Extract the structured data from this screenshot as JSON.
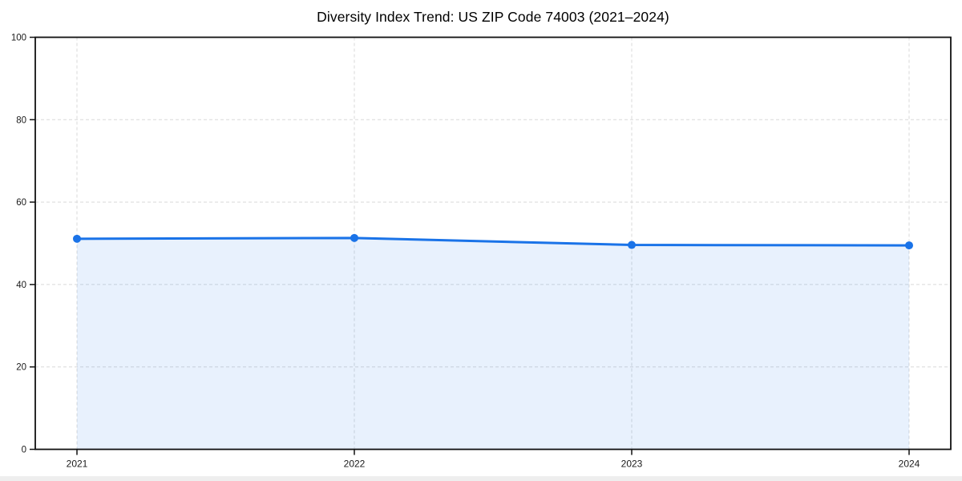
{
  "chart_data": {
    "type": "area",
    "title": "Diversity Index Trend: US ZIP Code 74003 (2021–2024)",
    "categories": [
      "2021",
      "2022",
      "2023",
      "2024"
    ],
    "values": [
      51.1,
      51.3,
      49.6,
      49.5
    ],
    "xlabel": "",
    "ylabel": "",
    "ylim": [
      0,
      100
    ],
    "yticks": [
      0,
      20,
      40,
      60,
      80,
      100
    ],
    "grid": true,
    "grid_style": "dashed",
    "legend_position": "none",
    "marker": "circle",
    "colors": {
      "line": "#1a73e8",
      "marker": "#1a73e8",
      "fill": "rgba(26,115,232,0.10)",
      "grid": "#d9d9d9",
      "spine": "#111111",
      "tick_text": "#1a1a1a",
      "title_text": "#000000",
      "background": "#ffffff",
      "bottom_strip": "#eeeeee"
    }
  }
}
